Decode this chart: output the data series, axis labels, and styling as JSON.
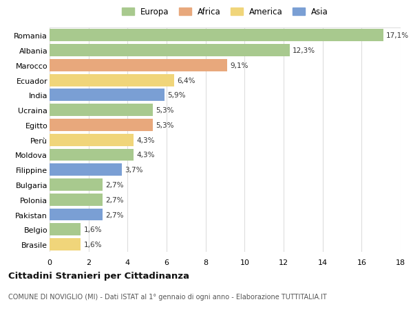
{
  "countries": [
    "Romania",
    "Albania",
    "Marocco",
    "Ecuador",
    "India",
    "Ucraina",
    "Egitto",
    "Perù",
    "Moldova",
    "Filippine",
    "Bulgaria",
    "Polonia",
    "Pakistan",
    "Belgio",
    "Brasile"
  ],
  "values": [
    17.1,
    12.3,
    9.1,
    6.4,
    5.9,
    5.3,
    5.3,
    4.3,
    4.3,
    3.7,
    2.7,
    2.7,
    2.7,
    1.6,
    1.6
  ],
  "labels": [
    "17,1%",
    "12,3%",
    "9,1%",
    "6,4%",
    "5,9%",
    "5,3%",
    "5,3%",
    "4,3%",
    "4,3%",
    "3,7%",
    "2,7%",
    "2,7%",
    "2,7%",
    "1,6%",
    "1,6%"
  ],
  "continents": [
    "Europa",
    "Europa",
    "Africa",
    "America",
    "Asia",
    "Europa",
    "Africa",
    "America",
    "Europa",
    "Asia",
    "Europa",
    "Europa",
    "Asia",
    "Europa",
    "America"
  ],
  "continent_colors": {
    "Europa": "#a8c98e",
    "Africa": "#e8a87c",
    "America": "#f0d57a",
    "Asia": "#7a9fd4"
  },
  "legend_order": [
    "Europa",
    "Africa",
    "America",
    "Asia"
  ],
  "title": "Cittadini Stranieri per Cittadinanza",
  "subtitle": "COMUNE DI NOVIGLIO (MI) - Dati ISTAT al 1° gennaio di ogni anno - Elaborazione TUTTITALIA.IT",
  "xlim": [
    0,
    18
  ],
  "xticks": [
    0,
    2,
    4,
    6,
    8,
    10,
    12,
    14,
    16,
    18
  ],
  "bg_color": "#ffffff",
  "grid_color": "#dddddd",
  "bar_height": 0.82
}
